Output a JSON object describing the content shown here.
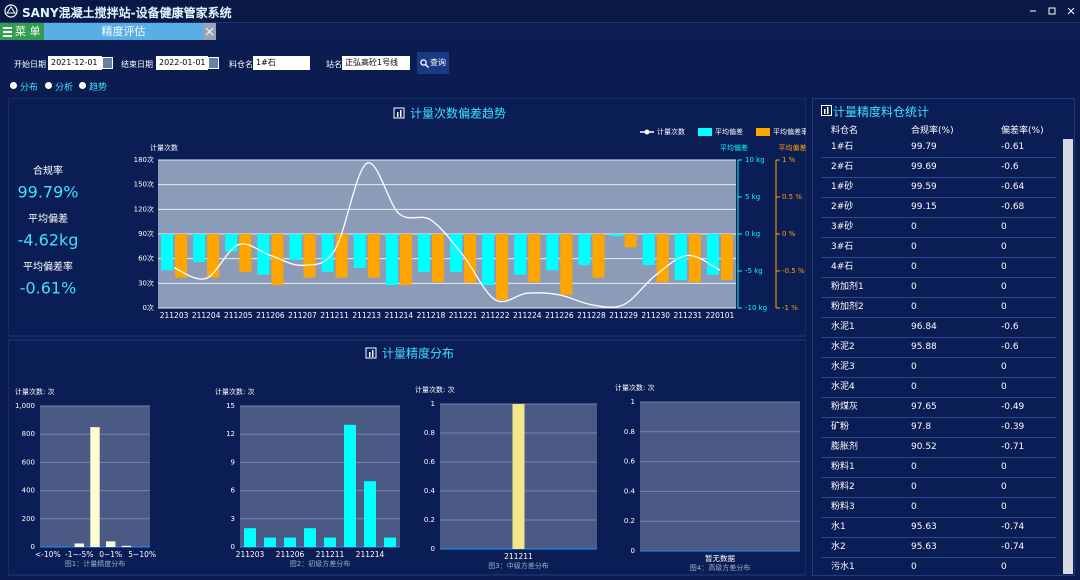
{
  "header": {
    "title": "SANY混凝土搅拌站-设备健康管家系统",
    "menu": "菜 单",
    "tab": "精度评估"
  },
  "filters": {
    "start_label": "开始日期",
    "start": "2021-12-01",
    "end_label": "结束日期",
    "end": "2022-01-01",
    "bin_label": "料仓名",
    "bin": "1#石",
    "station_label": "站名",
    "station": "正弘高砼1号线",
    "query": "查询"
  },
  "views": [
    "分布",
    "分析",
    "趋势"
  ],
  "stats": [
    {
      "label": "合规率",
      "value": "99.79%"
    },
    {
      "label": "平均偏差",
      "value": "-4.62kg"
    },
    {
      "label": "平均偏差率",
      "value": "-0.61%"
    }
  ],
  "section_title": "计量精度分布",
  "chart_data": [
    {
      "type": "combo",
      "title": "计量次数偏差趋势",
      "y_label": "计量次数",
      "y2_label": "平均偏差",
      "y3_label": "平均偏差率",
      "categories": [
        "211203",
        "211204",
        "211205",
        "211206",
        "211207",
        "211211",
        "211213",
        "211214",
        "211218",
        "211221",
        "211222",
        "211224",
        "211226",
        "211228",
        "211229",
        "211230",
        "211231",
        "220101"
      ],
      "series": [
        {
          "name": "计量次数",
          "type": "line",
          "axis": "y",
          "color": "#ffffff",
          "values": [
            49,
            36,
            77,
            64,
            52,
            70,
            176,
            115,
            107,
            64,
            10,
            18,
            16,
            4,
            4,
            40,
            64,
            46
          ]
        },
        {
          "name": "平均偏差",
          "type": "bar",
          "axis": "y2",
          "color": "#00ffff",
          "values": [
            -4.9,
            -3.8,
            -2.4,
            -5.5,
            -3.5,
            -5.1,
            -4.6,
            -6.9,
            -5.1,
            -5.1,
            -6.9,
            -5.5,
            -4.9,
            -4.2,
            -0.3,
            -4.2,
            -6.2,
            -5.5
          ]
        },
        {
          "name": "平均偏差率",
          "type": "bar",
          "axis": "y3",
          "color": "#ffa500",
          "values": [
            -0.59,
            -0.59,
            -0.51,
            -0.69,
            -0.59,
            -0.59,
            -0.59,
            -0.69,
            -0.65,
            -0.66,
            -0.89,
            -0.65,
            -0.82,
            -0.59,
            -0.18,
            -0.65,
            -0.65,
            -0.62
          ]
        }
      ],
      "ylim": [
        0,
        180
      ],
      "yticks": [
        {
          "value": 0,
          "label": "0次"
        },
        {
          "value": 30,
          "label": "30次"
        },
        {
          "value": 60,
          "label": "60次"
        },
        {
          "value": 90,
          "label": "90次"
        },
        {
          "value": 120,
          "label": "120次"
        },
        {
          "value": 150,
          "label": "150次"
        },
        {
          "value": 180,
          "label": "180次"
        }
      ],
      "y2lim": [
        -10,
        10
      ],
      "y2ticks": [
        {
          "value": -10,
          "label": "-10 kg"
        },
        {
          "value": -5,
          "label": "-5 kg"
        },
        {
          "value": 0,
          "label": "0 kg"
        },
        {
          "value": 5,
          "label": "5 kg"
        },
        {
          "value": 10,
          "label": "10 kg"
        }
      ],
      "y3lim": [
        -1,
        1
      ],
      "y3ticks": [
        {
          "value": -1,
          "label": "-1 %"
        },
        {
          "value": -0.5,
          "label": "-0.5 %"
        },
        {
          "value": 0,
          "label": "0 %"
        },
        {
          "value": 0.5,
          "label": "0.5 %"
        },
        {
          "value": 1,
          "label": "1 %"
        }
      ],
      "grid": true
    },
    {
      "type": "bar",
      "y_label": "计量次数: 次",
      "caption": "图1：计量精度分布",
      "color": "#fffbd5",
      "categories": [
        "<-10%",
        null,
        "-1~-5%",
        null,
        "0~1%",
        null,
        "5~10%"
      ],
      "values": [
        0,
        0,
        25,
        850,
        40,
        8,
        0
      ],
      "ylim": [
        0,
        1000
      ],
      "yticks": [
        0,
        200,
        400,
        600,
        800,
        {
          "value": 1000,
          "label": "1,000"
        }
      ],
      "grid": true
    },
    {
      "type": "bar",
      "y_label": "计量次数: 次",
      "caption": "图2：初级方差分布",
      "color": "#00ffff",
      "categories": [
        "211203",
        null,
        "211206",
        null,
        "211211",
        null,
        "211214",
        null
      ],
      "values": [
        2,
        1,
        1,
        2,
        1,
        13,
        7,
        1
      ],
      "ylim": [
        0,
        15
      ],
      "yticks": [
        0,
        3,
        6,
        9,
        12,
        15
      ],
      "grid": true
    },
    {
      "type": "bar",
      "y_label": "计量次数: 次",
      "caption": "图3：中级方差分布",
      "color": "#f0e68c",
      "categories": [
        "211211"
      ],
      "values": [
        1
      ],
      "ylim": [
        0,
        1
      ],
      "yticks": [
        0,
        0.2,
        0.4,
        0.6,
        0.8,
        1
      ],
      "grid": true
    },
    {
      "type": "bar",
      "y_label": "计量次数: 次",
      "caption": "图4：高级方差分布",
      "color": "#f0e68c",
      "categories": [
        "暂无数据"
      ],
      "values": [
        null
      ],
      "ylim": [
        0,
        1
      ],
      "yticks": [
        0,
        0.2,
        0.4,
        0.6,
        0.8,
        1
      ],
      "grid": true
    }
  ],
  "table": {
    "title": "计量精度料仓统计",
    "columns": [
      "料仓名",
      "合规率(%)",
      "偏差率(%)"
    ],
    "rows": [
      [
        "1#石",
        99.79,
        -0.61
      ],
      [
        "2#石",
        99.69,
        -0.6
      ],
      [
        "1#砂",
        99.59,
        -0.64
      ],
      [
        "2#砂",
        99.15,
        -0.68
      ],
      [
        "3#砂",
        0,
        0
      ],
      [
        "3#石",
        0,
        0
      ],
      [
        "4#石",
        0,
        0
      ],
      [
        "粉加剂1",
        0,
        0
      ],
      [
        "粉加剂2",
        0,
        0
      ],
      [
        "水泥1",
        96.84,
        -0.6
      ],
      [
        "水泥2",
        95.88,
        -0.6
      ],
      [
        "水泥3",
        0,
        0
      ],
      [
        "水泥4",
        0,
        0
      ],
      [
        "粉煤灰",
        97.65,
        -0.49
      ],
      [
        "矿粉",
        97.8,
        -0.39
      ],
      [
        "膨胀剂",
        90.52,
        -0.71
      ],
      [
        "粉料1",
        0,
        0
      ],
      [
        "粉料2",
        0,
        0
      ],
      [
        "粉料3",
        0,
        0
      ],
      [
        "水1",
        95.63,
        -0.74
      ],
      [
        "水2",
        95.63,
        -0.74
      ],
      [
        "污水1",
        0,
        0
      ]
    ]
  }
}
